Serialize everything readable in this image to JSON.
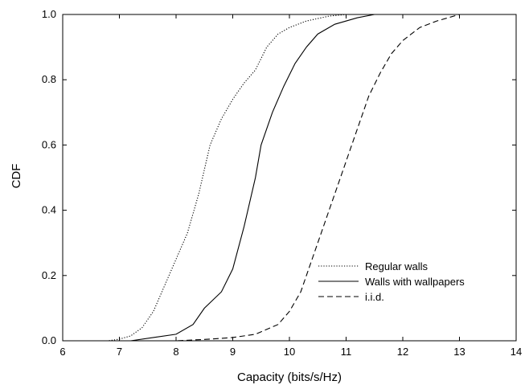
{
  "chart_data": {
    "type": "line",
    "title": "",
    "xlabel": "Capacity (bits/s/Hz)",
    "ylabel": "CDF",
    "xlim": [
      6,
      14
    ],
    "ylim": [
      0,
      1
    ],
    "x_ticks": [
      "6",
      "7",
      "8",
      "9",
      "10",
      "11",
      "12",
      "13",
      "14"
    ],
    "y_ticks": [
      "0.0",
      "0.2",
      "0.4",
      "0.6",
      "0.8",
      "1.0"
    ],
    "grid": false,
    "legend_position": "bottom-right",
    "series": [
      {
        "name": "Regular walls",
        "line_style": "dotted",
        "color": "#000000",
        "points": [
          [
            6.8,
            0.0
          ],
          [
            7.0,
            0.005
          ],
          [
            7.2,
            0.015
          ],
          [
            7.4,
            0.04
          ],
          [
            7.6,
            0.09
          ],
          [
            7.8,
            0.17
          ],
          [
            8.0,
            0.25
          ],
          [
            8.2,
            0.33
          ],
          [
            8.4,
            0.45
          ],
          [
            8.6,
            0.6
          ],
          [
            8.8,
            0.68
          ],
          [
            9.0,
            0.74
          ],
          [
            9.2,
            0.79
          ],
          [
            9.4,
            0.83
          ],
          [
            9.6,
            0.9
          ],
          [
            9.8,
            0.94
          ],
          [
            10.0,
            0.96
          ],
          [
            10.3,
            0.98
          ],
          [
            10.7,
            0.995
          ],
          [
            11.0,
            1.0
          ]
        ]
      },
      {
        "name": "Walls with wallpapers",
        "line_style": "solid",
        "color": "#000000",
        "points": [
          [
            7.2,
            0.0
          ],
          [
            7.6,
            0.01
          ],
          [
            8.0,
            0.02
          ],
          [
            8.3,
            0.05
          ],
          [
            8.5,
            0.1
          ],
          [
            8.8,
            0.15
          ],
          [
            9.0,
            0.22
          ],
          [
            9.2,
            0.35
          ],
          [
            9.4,
            0.5
          ],
          [
            9.5,
            0.6
          ],
          [
            9.7,
            0.7
          ],
          [
            9.9,
            0.78
          ],
          [
            10.1,
            0.85
          ],
          [
            10.3,
            0.9
          ],
          [
            10.5,
            0.94
          ],
          [
            10.8,
            0.97
          ],
          [
            11.2,
            0.99
          ],
          [
            11.5,
            1.0
          ]
        ]
      },
      {
        "name": "i.i.d.",
        "line_style": "dashed",
        "color": "#000000",
        "points": [
          [
            8.0,
            0.0
          ],
          [
            8.6,
            0.005
          ],
          [
            9.0,
            0.01
          ],
          [
            9.4,
            0.02
          ],
          [
            9.8,
            0.05
          ],
          [
            10.0,
            0.09
          ],
          [
            10.2,
            0.15
          ],
          [
            10.4,
            0.25
          ],
          [
            10.6,
            0.35
          ],
          [
            10.8,
            0.45
          ],
          [
            11.0,
            0.55
          ],
          [
            11.2,
            0.65
          ],
          [
            11.4,
            0.75
          ],
          [
            11.6,
            0.82
          ],
          [
            11.8,
            0.88
          ],
          [
            12.0,
            0.92
          ],
          [
            12.3,
            0.96
          ],
          [
            12.6,
            0.98
          ],
          [
            13.0,
            1.0
          ]
        ]
      }
    ]
  }
}
